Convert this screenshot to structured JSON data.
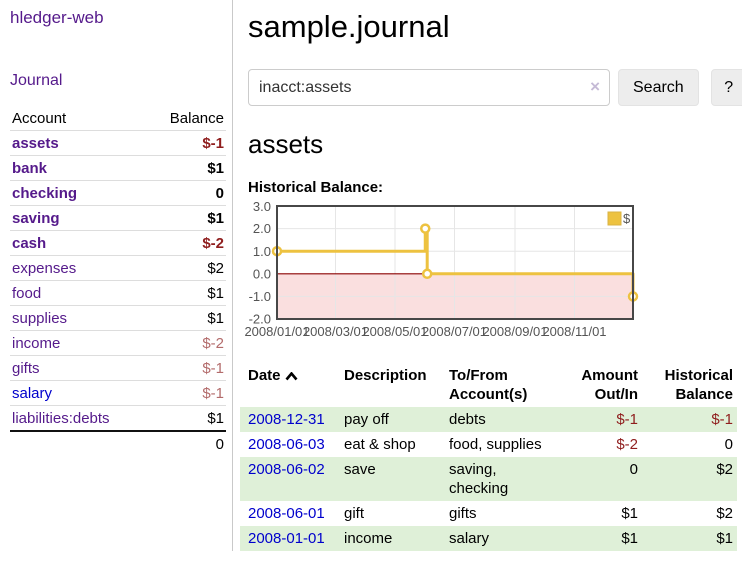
{
  "app": {
    "brand": "hledger-web",
    "nav_journal": "Journal"
  },
  "sidebar": {
    "headers": {
      "account": "Account",
      "balance": "Balance"
    },
    "accounts": [
      {
        "name": "assets",
        "balance": "$-1",
        "indent": 1,
        "matched": true
      },
      {
        "name": "bank",
        "balance": "$1",
        "indent": 2,
        "matched": true
      },
      {
        "name": "checking",
        "balance": "0",
        "indent": 3,
        "matched": true
      },
      {
        "name": "saving",
        "balance": "$1",
        "indent": 3,
        "matched": true
      },
      {
        "name": "cash",
        "balance": "$-2",
        "indent": 2,
        "matched": true
      },
      {
        "name": "expenses",
        "balance": "$2",
        "indent": 1,
        "matched": false
      },
      {
        "name": "food",
        "balance": "$1",
        "indent": 2,
        "matched": false
      },
      {
        "name": "supplies",
        "balance": "$1",
        "indent": 2,
        "matched": false
      },
      {
        "name": "income",
        "balance": "$-2",
        "indent": 1,
        "matched": false
      },
      {
        "name": "gifts",
        "balance": "$-1",
        "indent": 2,
        "matched": false
      },
      {
        "name": "salary",
        "balance": "$-1",
        "indent": 2,
        "matched": false
      },
      {
        "name": "liabilities:debts",
        "balance": "$1",
        "indent": 1,
        "matched": false
      }
    ],
    "total": "0"
  },
  "main": {
    "title": "sample.journal",
    "search": {
      "value": "inacct:assets",
      "clear": "×",
      "button": "Search",
      "help": "?"
    },
    "heading": "assets",
    "chart_label": "Historical Balance:"
  },
  "chart_data": {
    "type": "line",
    "title": "Historical Balance:",
    "step": true,
    "x_range": [
      "2008-01-01",
      "2008-12-31"
    ],
    "ylim": [
      -2,
      3
    ],
    "yticks": [
      "3.0",
      "2.0",
      "1.0",
      "0.0",
      "-1.0",
      "-2.0"
    ],
    "xticks": [
      "2008/01/01",
      "2008/03/01",
      "2008/05/01",
      "2008/07/01",
      "2008/09/01",
      "2008/11/01"
    ],
    "series": [
      {
        "name": "$",
        "color": "#edc240",
        "points": [
          {
            "x": "2008-01-01",
            "y": 1
          },
          {
            "x": "2008-06-01",
            "y": 2
          },
          {
            "x": "2008-06-03",
            "y": 0
          },
          {
            "x": "2008-12-31",
            "y": -1
          }
        ]
      }
    ],
    "grid": true,
    "legend_position": "top-right",
    "negative_region_color": "#f9dcdc",
    "zero_line_color": "#8b0000"
  },
  "register": {
    "headers": {
      "date": "Date",
      "description": "Description",
      "accounts": "To/From Account(s)",
      "amount": "Amount Out/In",
      "balance": "Historical Balance"
    },
    "rows": [
      {
        "date": "2008-12-31",
        "description": "pay off",
        "accounts": "debts",
        "amount": "$-1",
        "balance": "$-1"
      },
      {
        "date": "2008-06-03",
        "description": "eat & shop",
        "accounts": "food, supplies",
        "amount": "$-2",
        "balance": "0"
      },
      {
        "date": "2008-06-02",
        "description": "save",
        "accounts": "saving, checking",
        "amount": "0",
        "balance": "$2"
      },
      {
        "date": "2008-06-01",
        "description": "gift",
        "accounts": "gifts",
        "amount": "$1",
        "balance": "$2"
      },
      {
        "date": "2008-01-01",
        "description": "income",
        "accounts": "salary",
        "amount": "$1",
        "balance": "$1"
      }
    ]
  },
  "colors": {
    "link_visited": "#551a8b",
    "link": "#0000cc",
    "negative_strong": "#8f1d1d",
    "negative_soft": "#b36b6b",
    "row_stripe_green": "#dff0d8",
    "chart_line_gold": "#edc240"
  }
}
